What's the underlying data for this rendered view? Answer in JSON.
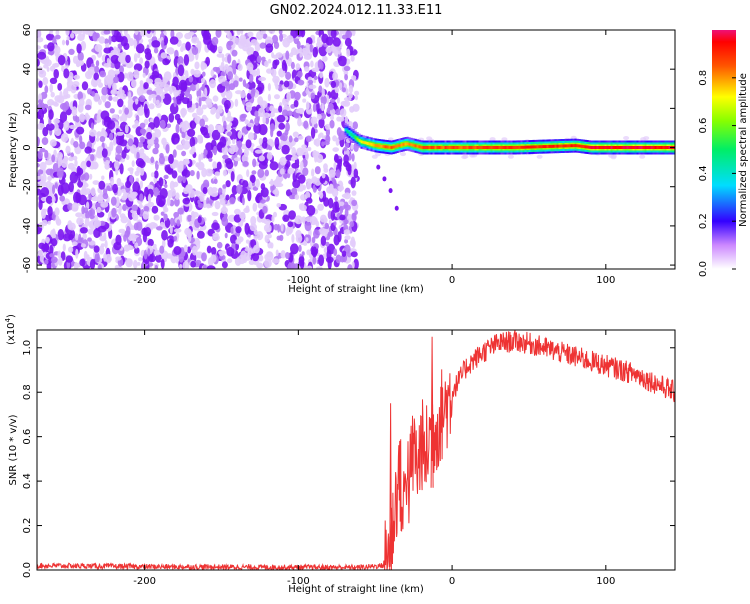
{
  "page_title": "GN02.2024.012.11.33.E11",
  "chart_data": [
    {
      "type": "heatmap",
      "xlabel": "Height of straight line (km)",
      "ylabel": "Frequency (Hz)",
      "xlim": [
        -270,
        145
      ],
      "ylim": [
        -62,
        60
      ],
      "x_ticks": [
        -200,
        -100,
        0,
        100
      ],
      "x_tick_labels": [
        "-200",
        "-100",
        "0",
        "100"
      ],
      "y_ticks": [
        -60,
        -40,
        -20,
        0,
        20,
        40,
        60
      ],
      "y_tick_labels": [
        "-60",
        "-40",
        "-20",
        "0",
        "20",
        "40",
        "60"
      ],
      "noise_region": {
        "x_start": -270,
        "x_end": -62,
        "note_level": "low 0.1-0.4"
      },
      "signal_line": [
        {
          "x": -70,
          "y": 9,
          "amp": 0.4
        },
        {
          "x": -65,
          "y": 6,
          "amp": 0.5
        },
        {
          "x": -60,
          "y": 3,
          "amp": 0.7
        },
        {
          "x": -50,
          "y": 1,
          "amp": 0.8
        },
        {
          "x": -40,
          "y": 0,
          "amp": 0.85
        },
        {
          "x": -30,
          "y": 2,
          "amp": 0.8
        },
        {
          "x": -20,
          "y": 0,
          "amp": 0.85
        },
        {
          "x": 0,
          "y": 0,
          "amp": 0.85
        },
        {
          "x": 40,
          "y": 0,
          "amp": 0.9
        },
        {
          "x": 80,
          "y": 1,
          "amp": 0.9
        },
        {
          "x": 90,
          "y": 0,
          "amp": 0.95
        },
        {
          "x": 145,
          "y": 0,
          "amp": 0.95
        }
      ],
      "colorbar": {
        "label": "Normalized spectral amplitude",
        "range": [
          0,
          1
        ],
        "ticks": [
          0.0,
          0.2,
          0.4,
          0.6,
          0.8
        ],
        "tick_labels": [
          "0.0",
          "0.2",
          "0.4",
          "0.6",
          "0.8"
        ]
      },
      "colors": {
        "signal": "#ff0000",
        "noise": "#7722ee"
      }
    },
    {
      "type": "line",
      "xlabel": "Height of straight line (km)",
      "ylabel": "SNR (10 * v/v)",
      "y_exponent_label": "(x10",
      "y_exponent": "4",
      "xlim": [
        -270,
        145
      ],
      "ylim": [
        0,
        1.08
      ],
      "x_ticks": [
        -200,
        -100,
        0,
        100
      ],
      "x_tick_labels": [
        "-200",
        "-100",
        "0",
        "100"
      ],
      "y_ticks": [
        0.0,
        0.2,
        0.4,
        0.6,
        0.8,
        1.0
      ],
      "y_tick_labels": [
        "0.0",
        "0.2",
        "0.4",
        "0.6",
        "0.8",
        "1.0"
      ],
      "series": [
        {
          "color": "#ee3333",
          "x": [
            -270,
            -200,
            -100,
            -60,
            -45,
            -40,
            -37,
            -34,
            -32,
            -30,
            -28,
            -25,
            -22,
            -20,
            -18,
            -15,
            -10,
            0,
            10,
            20,
            30,
            40,
            50,
            60,
            80,
            100,
            120,
            145
          ],
          "y": [
            0.02,
            0.015,
            0.012,
            0.012,
            0.02,
            0.1,
            0.3,
            0.45,
            0.2,
            0.5,
            0.38,
            0.55,
            0.45,
            0.6,
            0.48,
            0.6,
            0.65,
            0.8,
            0.92,
            0.98,
            1.02,
            1.03,
            1.02,
            1.0,
            0.96,
            0.92,
            0.88,
            0.8
          ]
        }
      ],
      "annotations": [
        {
          "x": -40,
          "y": 0.75,
          "note": "spike"
        },
        {
          "x": -13,
          "y": 1.05,
          "note": "spike"
        }
      ]
    }
  ]
}
